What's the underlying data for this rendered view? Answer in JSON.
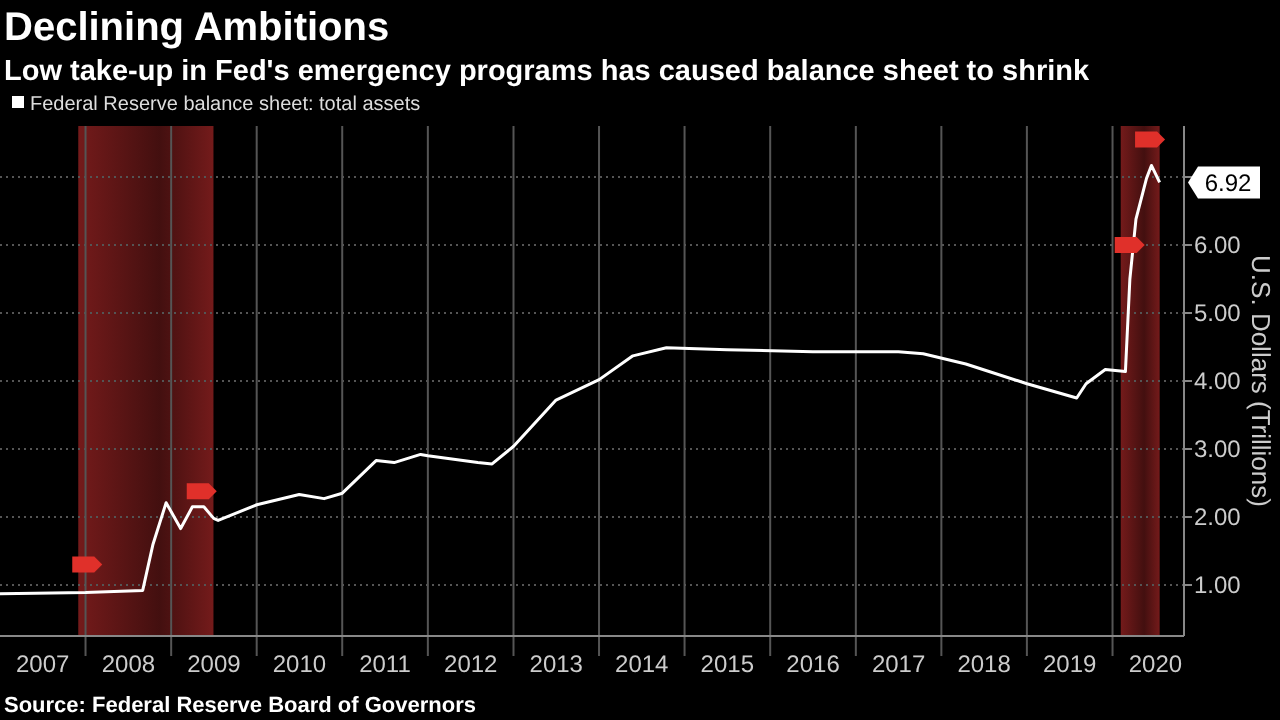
{
  "chart_data": {
    "type": "line",
    "title": "Declining Ambitions",
    "subtitle": "Low take-up in Fed's emergency programs has caused balance sheet to shrink",
    "ylabel": "U.S. Dollars (Trillions)",
    "x": [
      "2007-01-01",
      "2007-06-01",
      "2008-01-01",
      "2008-09-01",
      "2008-10-15",
      "2008-12-10",
      "2009-02-10",
      "2009-04-01",
      "2009-05-20",
      "2009-07-01",
      "2009-07-20",
      "2010-01-01",
      "2010-07-01",
      "2010-10-15",
      "2011-01-01",
      "2011-05-25",
      "2011-08-10",
      "2011-12-01",
      "2012-01-01",
      "2012-08-01",
      "2012-10-01",
      "2013-01-01",
      "2013-07-01",
      "2014-01-01",
      "2014-05-25",
      "2014-10-15",
      "2015-07-01",
      "2016-07-01",
      "2017-07-01",
      "2017-10-15",
      "2018-04-15",
      "2019-01-01",
      "2019-08-01",
      "2019-09-10",
      "2019-12-01",
      "2020-02-25",
      "2020-03-15",
      "2020-04-10",
      "2020-05-25",
      "2020-06-15",
      "2020-07-20"
    ],
    "series": [
      {
        "name": "Federal Reserve balance sheet: total assets",
        "color": "#ffffff",
        "values": [
          0.87,
          0.88,
          0.89,
          0.92,
          1.6,
          2.21,
          1.83,
          2.15,
          2.15,
          1.98,
          1.95,
          2.18,
          2.33,
          2.27,
          2.35,
          2.83,
          2.8,
          2.92,
          2.9,
          2.8,
          2.78,
          3.04,
          3.72,
          4.02,
          4.37,
          4.49,
          4.46,
          4.43,
          4.43,
          4.4,
          4.25,
          3.96,
          3.75,
          3.96,
          4.17,
          4.14,
          5.5,
          6.38,
          6.98,
          7.17,
          6.92
        ]
      }
    ],
    "xlim": [
      "2007-01-01",
      "2020-11-01"
    ],
    "xticks": [
      {
        "value": "2007-07-02",
        "label": "2007"
      },
      {
        "value": "2008-07-02",
        "label": "2008"
      },
      {
        "value": "2009-07-02",
        "label": "2009"
      },
      {
        "value": "2010-07-02",
        "label": "2010"
      },
      {
        "value": "2011-07-02",
        "label": "2011"
      },
      {
        "value": "2012-07-02",
        "label": "2012"
      },
      {
        "value": "2013-07-02",
        "label": "2013"
      },
      {
        "value": "2014-07-02",
        "label": "2014"
      },
      {
        "value": "2015-07-02",
        "label": "2015"
      },
      {
        "value": "2016-07-02",
        "label": "2016"
      },
      {
        "value": "2017-07-02",
        "label": "2017"
      },
      {
        "value": "2018-07-02",
        "label": "2018"
      },
      {
        "value": "2019-07-02",
        "label": "2019"
      },
      {
        "value": "2020-07-02",
        "label": "2020"
      }
    ],
    "ylim": [
      0.25,
      7.75
    ],
    "yticks": [
      {
        "value": 1,
        "label": "1.00"
      },
      {
        "value": 2,
        "label": "2.00"
      },
      {
        "value": 3,
        "label": "3.00"
      },
      {
        "value": 4,
        "label": "4.00"
      },
      {
        "value": 5,
        "label": "5.00"
      },
      {
        "value": 6,
        "label": "6.00"
      },
      {
        "value": 7,
        "label": null
      }
    ],
    "bands": [
      {
        "axis": "x",
        "from": "2007-12-01",
        "to": "2009-06-30",
        "color": "#7a1c1c"
      },
      {
        "axis": "x",
        "from": "2020-02-05",
        "to": "2020-07-20",
        "color": "#7a1c1c"
      }
    ],
    "annotations": [
      {
        "text": "6.92",
        "x": "2020-07-20",
        "y": 6.92
      },
      "Source: Federal Reserve Board of Governors"
    ],
    "grid": true,
    "legend": "top left",
    "marker": "none",
    "line_style": "solid"
  }
}
